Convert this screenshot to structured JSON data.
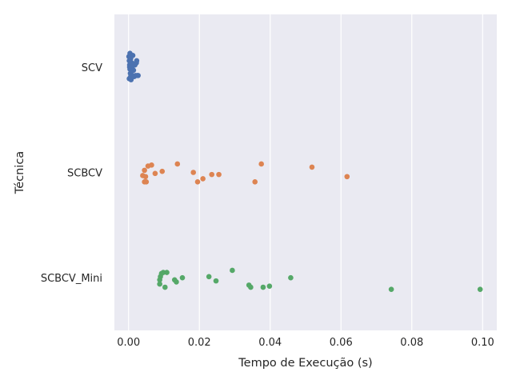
{
  "chart_data": {
    "type": "scatter",
    "subtype": "strip",
    "title": "",
    "xlabel": "Tempo de Execução (s)",
    "ylabel": "Técnica",
    "xlim": [
      -0.004,
      0.104
    ],
    "xticks": [
      0.0,
      0.02,
      0.04,
      0.06,
      0.08,
      0.1
    ],
    "xtick_labels": [
      "0.00",
      "0.02",
      "0.04",
      "0.06",
      "0.08",
      "0.10"
    ],
    "categories": [
      "SCV",
      "SCBCV",
      "SCBCV_Mini"
    ],
    "grid": true,
    "colors": {
      "background": "#eaeaf2",
      "grid": "#ffffff",
      "text": "#262626",
      "series": [
        "#4c72b0",
        "#dd8452",
        "#55a868"
      ]
    },
    "series": [
      {
        "name": "SCV",
        "points": [
          {
            "x": 0.0001,
            "j": -0.1
          },
          {
            "x": 0.0002,
            "j": -0.06
          },
          {
            "x": 0.0003,
            "j": -0.02
          },
          {
            "x": 0.0004,
            "j": 0.02
          },
          {
            "x": 0.0005,
            "j": 0.06
          },
          {
            "x": 0.0006,
            "j": 0.09
          },
          {
            "x": 0.0002,
            "j": 0.11
          },
          {
            "x": 0.0004,
            "j": -0.13
          },
          {
            "x": 0.0006,
            "j": -0.08
          },
          {
            "x": 0.0008,
            "j": 0.04
          },
          {
            "x": 0.0009,
            "j": -0.04
          },
          {
            "x": 0.001,
            "j": 0.0
          },
          {
            "x": 0.0011,
            "j": 0.08
          },
          {
            "x": 0.0012,
            "j": -0.11
          },
          {
            "x": 0.0014,
            "j": 0.03
          },
          {
            "x": 0.0016,
            "j": 0.09
          },
          {
            "x": 0.0018,
            "j": -0.02
          },
          {
            "x": 0.002,
            "j": 0.08
          },
          {
            "x": 0.0022,
            "j": -0.04
          },
          {
            "x": 0.0023,
            "j": -0.06
          },
          {
            "x": 0.0025,
            "j": 0.08
          },
          {
            "x": 0.0027,
            "j": 0.08
          },
          {
            "x": 0.0003,
            "j": 0.0
          },
          {
            "x": 0.0007,
            "j": 0.12
          }
        ]
      },
      {
        "name": "SCBCV",
        "points": [
          {
            "x": 0.0045,
            "j": 0.09
          },
          {
            "x": 0.005,
            "j": 0.09
          },
          {
            "x": 0.004,
            "j": 0.03
          },
          {
            "x": 0.0048,
            "j": 0.04
          },
          {
            "x": 0.0045,
            "j": -0.02
          },
          {
            "x": 0.0055,
            "j": -0.06
          },
          {
            "x": 0.0065,
            "j": -0.07
          },
          {
            "x": 0.0075,
            "j": 0.01
          },
          {
            "x": 0.0095,
            "j": -0.01
          },
          {
            "x": 0.0138,
            "j": -0.08
          },
          {
            "x": 0.0183,
            "j": 0.0
          },
          {
            "x": 0.0195,
            "j": 0.09
          },
          {
            "x": 0.021,
            "j": 0.06
          },
          {
            "x": 0.0235,
            "j": 0.02
          },
          {
            "x": 0.0255,
            "j": 0.02
          },
          {
            "x": 0.0357,
            "j": 0.09
          },
          {
            "x": 0.0375,
            "j": -0.08
          },
          {
            "x": 0.0518,
            "j": -0.05
          },
          {
            "x": 0.0617,
            "j": 0.04
          }
        ]
      },
      {
        "name": "SCBCV_Mini",
        "points": [
          {
            "x": 0.0088,
            "j": 0.06
          },
          {
            "x": 0.0088,
            "j": 0.02
          },
          {
            "x": 0.009,
            "j": -0.01
          },
          {
            "x": 0.0093,
            "j": -0.04
          },
          {
            "x": 0.0098,
            "j": -0.05
          },
          {
            "x": 0.0103,
            "j": 0.09
          },
          {
            "x": 0.0108,
            "j": -0.05
          },
          {
            "x": 0.013,
            "j": 0.02
          },
          {
            "x": 0.0135,
            "j": 0.04
          },
          {
            "x": 0.0152,
            "j": 0.0
          },
          {
            "x": 0.0227,
            "j": -0.01
          },
          {
            "x": 0.0247,
            "j": 0.03
          },
          {
            "x": 0.0293,
            "j": -0.07
          },
          {
            "x": 0.034,
            "j": 0.07
          },
          {
            "x": 0.0345,
            "j": 0.09
          },
          {
            "x": 0.038,
            "j": 0.09
          },
          {
            "x": 0.0398,
            "j": 0.08
          },
          {
            "x": 0.0458,
            "j": 0.0
          },
          {
            "x": 0.0742,
            "j": 0.11
          },
          {
            "x": 0.0993,
            "j": 0.11
          }
        ]
      }
    ]
  }
}
